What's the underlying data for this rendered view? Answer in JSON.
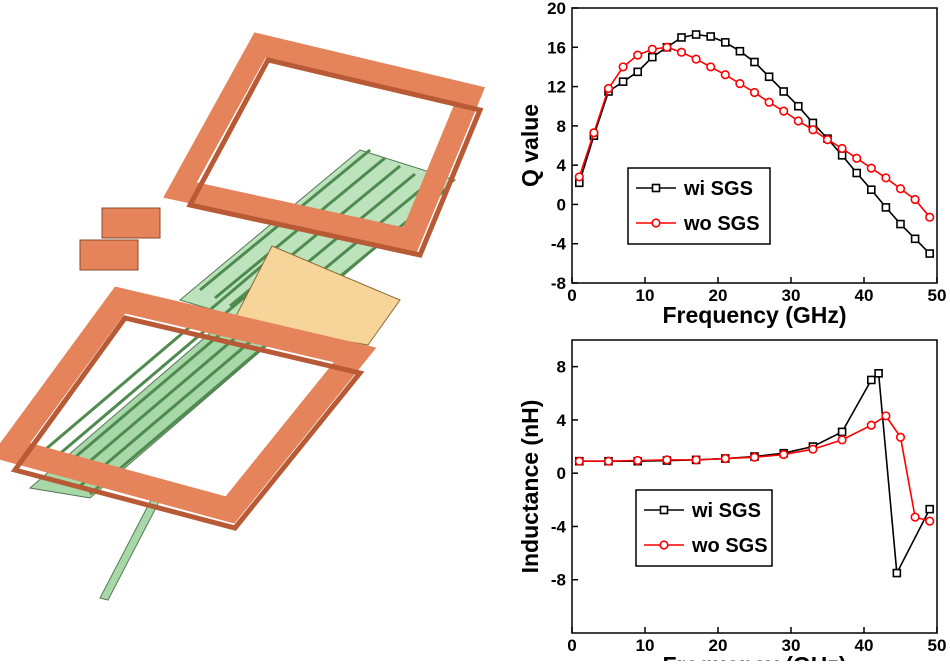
{
  "chart_data": [
    {
      "type": "line",
      "y_label": "Q value",
      "x_label": "Frequency (GHz)",
      "xlim": [
        0,
        50
      ],
      "xticks": [
        0,
        10,
        20,
        30,
        40,
        50
      ],
      "ylim": [
        -8,
        20
      ],
      "yticks": [
        -8,
        -4,
        0,
        4,
        8,
        12,
        16,
        20
      ],
      "x": [
        1,
        3,
        5,
        7,
        9,
        11,
        13,
        15,
        17,
        19,
        21,
        23,
        25,
        27,
        29,
        31,
        33,
        35,
        37,
        39,
        41,
        43,
        45,
        47,
        49
      ],
      "series": [
        {
          "name": "wi SGS",
          "color": "#000000",
          "marker": "square",
          "values": [
            2.2,
            7,
            11.5,
            12.5,
            13.5,
            15,
            16,
            17,
            17.3,
            17.1,
            16.5,
            15.6,
            14.5,
            13,
            11.5,
            10,
            8.3,
            6.7,
            5,
            3.2,
            1.5,
            -0.3,
            -2,
            -3.5,
            -5
          ]
        },
        {
          "name": "wo SGS",
          "color": "#ff0000",
          "marker": "circle",
          "values": [
            2.8,
            7.3,
            11.8,
            14,
            15.2,
            15.8,
            16,
            15.5,
            14.8,
            14,
            13.2,
            12.3,
            11.4,
            10.4,
            9.5,
            8.5,
            7.6,
            6.6,
            5.7,
            4.7,
            3.7,
            2.7,
            1.6,
            0.5,
            -1.3
          ]
        }
      ]
    },
    {
      "type": "line",
      "y_label": "Inductance (nH)",
      "x_label": "Frequency (GHz)",
      "xlim": [
        0,
        50
      ],
      "xticks": [
        0,
        10,
        20,
        30,
        40,
        50
      ],
      "ylim": [
        -12,
        10
      ],
      "yticks": [
        -8,
        -4,
        0,
        4,
        8
      ],
      "series": [
        {
          "name": "wi SGS",
          "color": "#000000",
          "marker": "square",
          "x": [
            1,
            5,
            9,
            13,
            17,
            21,
            25,
            29,
            33,
            37,
            41,
            42,
            44.5,
            49
          ],
          "values": [
            0.9,
            0.9,
            0.9,
            0.95,
            1.0,
            1.1,
            1.25,
            1.5,
            2.0,
            3.1,
            7.0,
            7.5,
            -7.5,
            -2.7
          ]
        },
        {
          "name": "wo SGS",
          "color": "#ff0000",
          "marker": "circle",
          "x": [
            1,
            5,
            9,
            13,
            17,
            21,
            25,
            29,
            33,
            37,
            41,
            43,
            45,
            47,
            49
          ],
          "values": [
            0.9,
            0.9,
            0.95,
            1.0,
            1.0,
            1.1,
            1.2,
            1.4,
            1.8,
            2.5,
            3.6,
            4.3,
            2.7,
            -3.3,
            -3.6
          ]
        }
      ]
    }
  ]
}
